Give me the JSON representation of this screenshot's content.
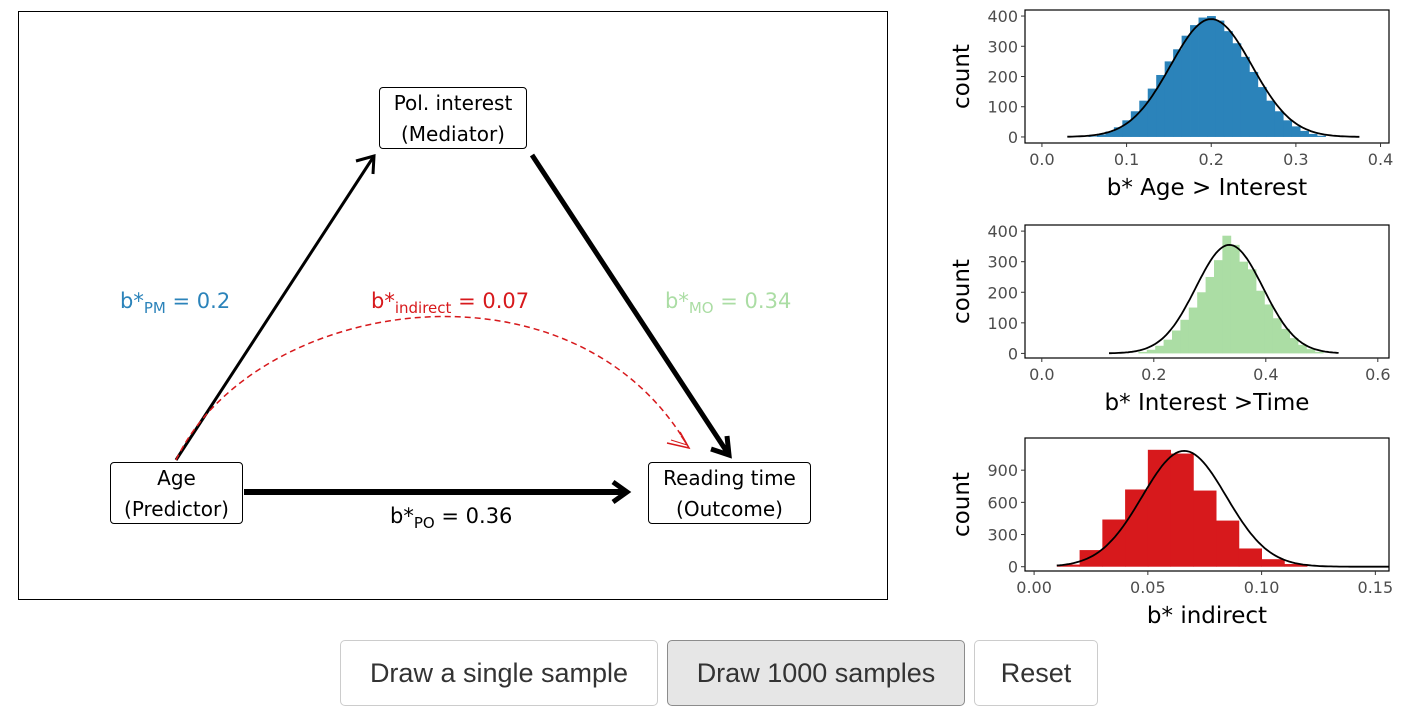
{
  "diagram": {
    "nodes": {
      "mediator": {
        "line1": "Pol. interest",
        "line2": "(Mediator)"
      },
      "predictor": {
        "line1": "Age",
        "line2": "(Predictor)"
      },
      "outcome": {
        "line1": "Reading time",
        "line2": "(Outcome)"
      }
    },
    "paths": {
      "pm": {
        "prefix": "b*",
        "sub": "PM",
        "value": "= 0.2",
        "color": "#2b83ba"
      },
      "indirect": {
        "prefix": "b*",
        "sub": "indirect",
        "value": "= 0.07",
        "color": "#d7191c"
      },
      "mo": {
        "prefix": "b*",
        "sub": "MO",
        "value": "= 0.34",
        "color": "#abdda4"
      },
      "po": {
        "prefix": "b*",
        "sub": "PO",
        "value": "= 0.36",
        "color": "#000000"
      }
    }
  },
  "chart_data": [
    {
      "type": "bar",
      "xlabel": "b* Age > Interest",
      "ylabel": "count",
      "color": "#2b83ba",
      "xlim": [
        -0.02,
        0.41
      ],
      "ylim": [
        -20,
        420
      ],
      "xticks": [
        0.0,
        0.1,
        0.2,
        0.3,
        0.4
      ],
      "xtick_labels": [
        "0.0",
        "0.1",
        "0.2",
        "0.3",
        "0.4"
      ],
      "yticks": [
        0,
        100,
        200,
        300,
        400
      ],
      "ytick_labels": [
        "0",
        "100",
        "200",
        "300",
        "400"
      ],
      "bin_width": 0.01,
      "bins": [
        [
          0.06,
          2
        ],
        [
          0.07,
          8
        ],
        [
          0.08,
          18
        ],
        [
          0.09,
          32
        ],
        [
          0.1,
          55
        ],
        [
          0.11,
          85
        ],
        [
          0.12,
          120
        ],
        [
          0.13,
          160
        ],
        [
          0.14,
          205
        ],
        [
          0.15,
          250
        ],
        [
          0.16,
          290
        ],
        [
          0.17,
          335
        ],
        [
          0.18,
          370
        ],
        [
          0.19,
          395
        ],
        [
          0.2,
          400
        ],
        [
          0.21,
          385
        ],
        [
          0.22,
          350
        ],
        [
          0.23,
          310
        ],
        [
          0.24,
          265
        ],
        [
          0.25,
          215
        ],
        [
          0.26,
          165
        ],
        [
          0.27,
          120
        ],
        [
          0.28,
          85
        ],
        [
          0.29,
          55
        ],
        [
          0.3,
          35
        ],
        [
          0.31,
          20
        ],
        [
          0.32,
          10
        ],
        [
          0.33,
          4
        ]
      ],
      "normal_curve": {
        "mean": 0.2,
        "sd": 0.048,
        "peak": 390,
        "range": [
          0.03,
          0.375
        ]
      }
    },
    {
      "type": "bar",
      "xlabel": "b* Interest >Time",
      "ylabel": "count",
      "color": "#abdda4",
      "xlim": [
        -0.03,
        0.62
      ],
      "ylim": [
        -15,
        420
      ],
      "xticks": [
        0.0,
        0.2,
        0.4,
        0.6
      ],
      "xtick_labels": [
        "0.0",
        "0.2",
        "0.4",
        "0.6"
      ],
      "yticks": [
        0,
        100,
        200,
        300,
        400
      ],
      "ytick_labels": [
        "0",
        "100",
        "200",
        "300",
        "400"
      ],
      "bin_width": 0.015,
      "bins": [
        [
          0.18,
          5
        ],
        [
          0.195,
          12
        ],
        [
          0.21,
          25
        ],
        [
          0.225,
          45
        ],
        [
          0.24,
          75
        ],
        [
          0.255,
          110
        ],
        [
          0.27,
          150
        ],
        [
          0.285,
          200
        ],
        [
          0.3,
          250
        ],
        [
          0.315,
          305
        ],
        [
          0.33,
          385
        ],
        [
          0.345,
          355
        ],
        [
          0.36,
          300
        ],
        [
          0.375,
          275
        ],
        [
          0.39,
          205
        ],
        [
          0.405,
          160
        ],
        [
          0.42,
          115
        ],
        [
          0.435,
          80
        ],
        [
          0.45,
          50
        ],
        [
          0.465,
          28
        ],
        [
          0.48,
          14
        ],
        [
          0.495,
          5
        ]
      ],
      "normal_curve": {
        "mean": 0.335,
        "sd": 0.06,
        "peak": 355,
        "range": [
          0.12,
          0.53
        ]
      }
    },
    {
      "type": "bar",
      "xlabel": "b* indirect",
      "ylabel": "count",
      "color": "#d7191c",
      "xlim": [
        -0.004,
        0.156
      ],
      "ylim": [
        -40,
        1200
      ],
      "xticks": [
        0.0,
        0.05,
        0.1,
        0.15
      ],
      "xtick_labels": [
        "0.00",
        "0.05",
        "0.10",
        "0.15"
      ],
      "yticks": [
        0,
        300,
        600,
        900
      ],
      "ytick_labels": [
        "0",
        "300",
        "600",
        "900"
      ],
      "bin_width": 0.01,
      "bins": [
        [
          0.015,
          20
        ],
        [
          0.025,
          155
        ],
        [
          0.035,
          440
        ],
        [
          0.045,
          720
        ],
        [
          0.055,
          1090
        ],
        [
          0.065,
          1055
        ],
        [
          0.075,
          710
        ],
        [
          0.085,
          430
        ],
        [
          0.095,
          170
        ],
        [
          0.105,
          70
        ],
        [
          0.115,
          25
        ]
      ],
      "normal_curve": {
        "mean": 0.066,
        "sd": 0.0185,
        "peak": 1080,
        "range": [
          0.01,
          0.156
        ]
      }
    }
  ],
  "buttons": {
    "single": "Draw a single sample",
    "thousand": "Draw 1000 samples",
    "reset": "Reset"
  }
}
